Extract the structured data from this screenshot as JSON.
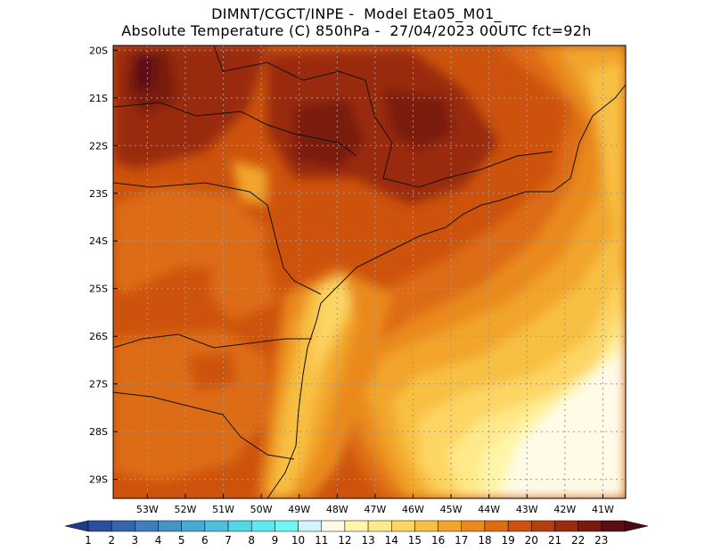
{
  "title": {
    "line1": "DIMNT/CGCT/INPE -  Model Eta05_M01_",
    "line2": "Absolute Temperature (C) 850hPa -  27/04/2023 00UTC fct=92h"
  },
  "map": {
    "lon_range": [
      -53.9,
      -40.4
    ],
    "lat_range": [
      -29.4,
      -19.9
    ],
    "lat_labels": [
      "20S",
      "21S",
      "22S",
      "23S",
      "24S",
      "25S",
      "26S",
      "27S",
      "28S",
      "29S"
    ],
    "lat_values": [
      -20,
      -21,
      -22,
      -23,
      -24,
      -25,
      -26,
      -27,
      -28,
      -29
    ],
    "lon_labels": [
      "53W",
      "52W",
      "51W",
      "50W",
      "49W",
      "48W",
      "47W",
      "46W",
      "45W",
      "44W",
      "43W",
      "42W",
      "41W"
    ],
    "lon_values": [
      -53,
      -52,
      -51,
      -50,
      -49,
      -48,
      -47,
      -46,
      -45,
      -44,
      -43,
      -42,
      -41
    ],
    "grid": true
  },
  "colorbar": {
    "labels": [
      "1",
      "2",
      "3",
      "4",
      "5",
      "6",
      "7",
      "8",
      "9",
      "10",
      "11",
      "12",
      "13",
      "14",
      "15",
      "16",
      "17",
      "18",
      "19",
      "20",
      "21",
      "22",
      "23"
    ],
    "colors": [
      "#2b4f9e",
      "#3566ad",
      "#3f7dbb",
      "#4693c6",
      "#4aa9d2",
      "#4fc0dc",
      "#55d6e6",
      "#5fe8ef",
      "#6ff7f7",
      "#cff4fa",
      "#fffbe6",
      "#fff5a8",
      "#ffe98a",
      "#fdd564",
      "#f8c043",
      "#f2a52b",
      "#ea8a1c",
      "#dd6c12",
      "#cd530c",
      "#b53f0a",
      "#9a2c0d",
      "#7a1a0f",
      "#5c0a14"
    ],
    "under_color": "#1e3a8a",
    "over_color": "#4a0a14"
  }
}
